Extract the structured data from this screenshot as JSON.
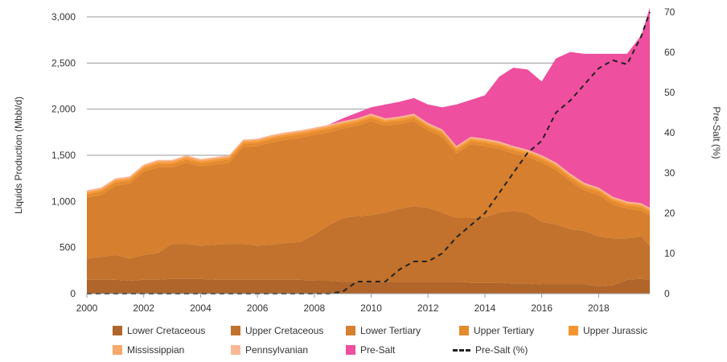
{
  "chart_data": {
    "type": "area",
    "stacked": true,
    "xlabel": "",
    "ylabel": "Liquids Production (Mbbl/d)",
    "y2label": "Pre-Salt (%)",
    "xlim": [
      2000,
      2019.8
    ],
    "ylim": [
      0,
      3000
    ],
    "y2lim": [
      0,
      70
    ],
    "xticks": [
      "2000",
      "2002",
      "2004",
      "2006",
      "2008",
      "2010",
      "2012",
      "2014",
      "2016",
      "2018"
    ],
    "yticks": [
      "0",
      "500",
      "1,000",
      "1,500",
      "2,000",
      "2,500",
      "3,000"
    ],
    "y2ticks": [
      "0",
      "10",
      "20",
      "30",
      "40",
      "50",
      "60",
      "70"
    ],
    "grid": "horizontal",
    "legend": "bottom",
    "x": [
      2000,
      2000.5,
      2001,
      2001.5,
      2002,
      2002.5,
      2003,
      2003.5,
      2004,
      2004.5,
      2005,
      2005.5,
      2006,
      2006.5,
      2007,
      2007.5,
      2008,
      2008.5,
      2009,
      2009.5,
      2010,
      2010.5,
      2011,
      2011.5,
      2012,
      2012.5,
      2013,
      2013.5,
      2014,
      2014.5,
      2015,
      2015.5,
      2016,
      2016.5,
      2017,
      2017.5,
      2018,
      2018.5,
      2019,
      2019.5,
      2019.8
    ],
    "series": [
      {
        "name": "Lower Cretaceous",
        "color": "#b0652a",
        "values": [
          150,
          150,
          150,
          140,
          150,
          150,
          160,
          160,
          160,
          150,
          150,
          150,
          150,
          150,
          150,
          150,
          140,
          140,
          130,
          130,
          130,
          130,
          130,
          130,
          130,
          130,
          130,
          120,
          120,
          120,
          110,
          110,
          100,
          100,
          100,
          100,
          80,
          90,
          150,
          160,
          150
        ]
      },
      {
        "name": "Upper Cretaceous",
        "color": "#c2722c",
        "values": [
          230,
          250,
          270,
          240,
          270,
          290,
          380,
          380,
          360,
          380,
          390,
          390,
          370,
          380,
          400,
          410,
          500,
          600,
          690,
          710,
          720,
          750,
          790,
          820,
          800,
          750,
          690,
          700,
          710,
          760,
          790,
          760,
          680,
          650,
          600,
          580,
          540,
          510,
          450,
          460,
          370
        ]
      },
      {
        "name": "Lower Tertiary",
        "color": "#d67f2e",
        "values": [
          660,
          670,
          750,
          810,
          900,
          930,
          830,
          880,
          860,
          870,
          880,
          1050,
          1080,
          1110,
          1120,
          1130,
          1080,
          1010,
          970,
          980,
          1020,
          940,
          920,
          920,
          840,
          820,
          700,
          800,
          770,
          690,
          620,
          610,
          640,
          590,
          520,
          440,
          450,
          370,
          320,
          280,
          330
        ]
      },
      {
        "name": "Upper Tertiary",
        "color": "#e68a2e",
        "values": [
          35,
          35,
          35,
          35,
          35,
          35,
          35,
          35,
          35,
          35,
          35,
          35,
          35,
          35,
          35,
          35,
          35,
          35,
          35,
          35,
          35,
          35,
          35,
          35,
          35,
          35,
          35,
          35,
          35,
          35,
          35,
          35,
          35,
          35,
          35,
          35,
          35,
          35,
          35,
          35,
          35
        ]
      },
      {
        "name": "Upper Jurassic",
        "color": "#f5952f",
        "values": [
          20,
          20,
          20,
          20,
          20,
          20,
          20,
          20,
          20,
          20,
          20,
          20,
          20,
          20,
          20,
          20,
          20,
          20,
          20,
          20,
          20,
          20,
          20,
          20,
          20,
          20,
          20,
          20,
          20,
          20,
          20,
          20,
          20,
          20,
          20,
          20,
          20,
          20,
          20,
          20,
          20
        ]
      },
      {
        "name": "Mississippian",
        "color": "#f7a86a",
        "values": [
          15,
          15,
          15,
          15,
          15,
          15,
          15,
          15,
          15,
          15,
          15,
          15,
          15,
          15,
          15,
          15,
          15,
          15,
          15,
          15,
          15,
          15,
          15,
          15,
          15,
          15,
          15,
          15,
          15,
          15,
          15,
          15,
          15,
          15,
          15,
          15,
          15,
          15,
          15,
          15,
          15
        ]
      },
      {
        "name": "Pennsylvanian",
        "color": "#fbb896",
        "values": [
          10,
          10,
          10,
          10,
          10,
          10,
          10,
          10,
          10,
          10,
          10,
          10,
          10,
          10,
          10,
          10,
          10,
          10,
          10,
          10,
          10,
          10,
          10,
          10,
          10,
          10,
          10,
          10,
          10,
          10,
          10,
          10,
          10,
          10,
          10,
          10,
          10,
          10,
          10,
          10,
          10
        ]
      },
      {
        "name": "Pre-Salt",
        "color": "#ee4f9e",
        "values": [
          0,
          0,
          0,
          0,
          0,
          0,
          0,
          0,
          0,
          0,
          0,
          0,
          0,
          0,
          0,
          0,
          0,
          0,
          30,
          60,
          70,
          150,
          160,
          170,
          200,
          240,
          450,
          400,
          470,
          700,
          850,
          870,
          800,
          1130,
          1320,
          1400,
          1450,
          1550,
          1600,
          1820,
          2170
        ]
      }
    ],
    "line_series": {
      "name": "Pre-Salt (%)",
      "axis": "right",
      "color": "#222222",
      "style": "dashed",
      "values": [
        0,
        0,
        0,
        0,
        0,
        0,
        0,
        0,
        0,
        0,
        0,
        0,
        0,
        0,
        0,
        0,
        0,
        0,
        0.5,
        3,
        3,
        3,
        6,
        8,
        8,
        10,
        14,
        17,
        20,
        25,
        30,
        35,
        38,
        45,
        48,
        52,
        56,
        58,
        57,
        64,
        70
      ]
    }
  }
}
